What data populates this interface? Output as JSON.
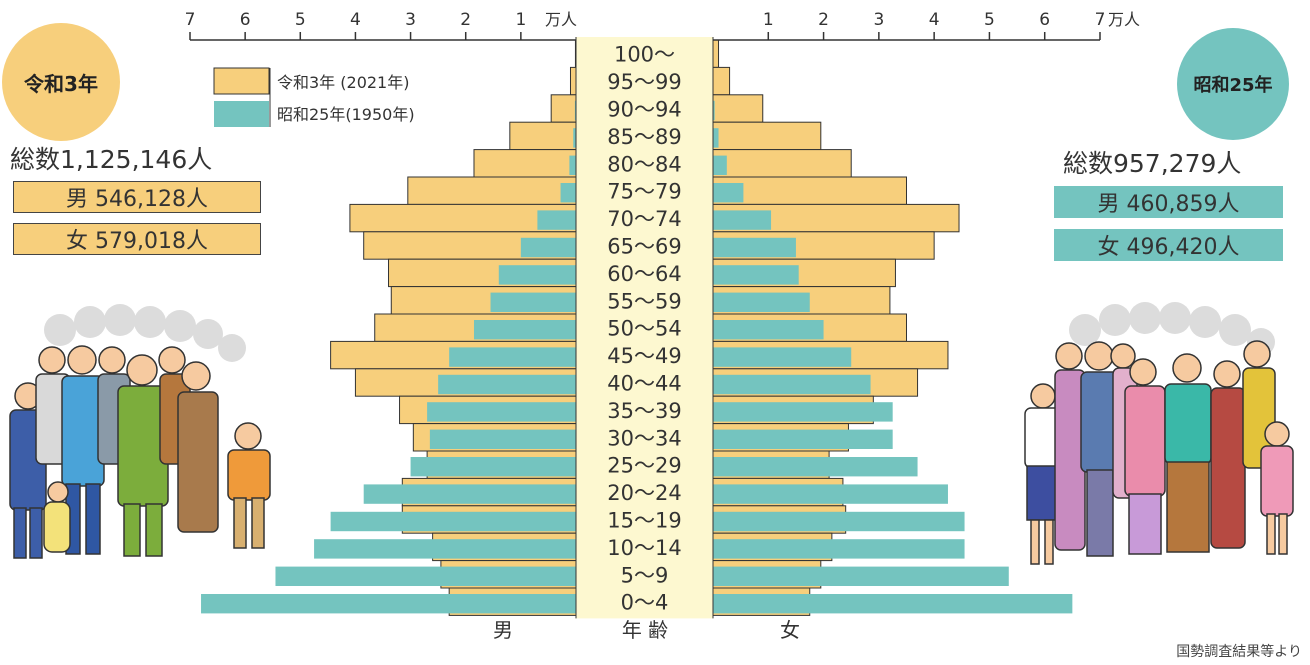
{
  "left_panel": {
    "era_label": "令和3年",
    "total": "総数1,125,146人",
    "male": "男 546,128人",
    "female": "女 579,018人"
  },
  "right_panel": {
    "era_label": "昭和25年",
    "total": "総数957,279人",
    "male": "男 460,859人",
    "female": "女 496,420人"
  },
  "source": "国勢調査結果等より",
  "colors": {
    "reiwa": "#f7cf7c",
    "showa": "#74c4bf",
    "band": "#fdf8d0",
    "axis": "#333333"
  },
  "chart_data": {
    "type": "bar",
    "orientation": "horizontal-population-pyramid",
    "unit": "万人",
    "xlim": [
      0,
      7
    ],
    "x_ticks_left": [
      "7",
      "6",
      "5",
      "4",
      "3",
      "2",
      "1",
      "万人"
    ],
    "x_ticks_right": [
      "1",
      "2",
      "3",
      "4",
      "5",
      "6",
      "7",
      "万人"
    ],
    "categories": [
      "100〜",
      "95〜99",
      "90〜94",
      "85〜89",
      "80〜84",
      "75〜79",
      "70〜74",
      "65〜69",
      "60〜64",
      "55〜59",
      "50〜54",
      "45〜49",
      "40〜44",
      "35〜39",
      "30〜34",
      "25〜29",
      "20〜24",
      "15〜19",
      "10〜14",
      "5〜9",
      "0〜4"
    ],
    "category_axis_label": "年 齢",
    "male_label": "男",
    "female_label": "女",
    "series": [
      {
        "name": "令和3年 (2021年)",
        "male": [
          0.01,
          0.1,
          0.45,
          1.2,
          1.85,
          3.05,
          4.1,
          3.85,
          3.4,
          3.35,
          3.65,
          4.45,
          4.0,
          3.2,
          2.95,
          2.7,
          3.15,
          3.15,
          2.6,
          2.45,
          2.3
        ],
        "female": [
          0.1,
          0.3,
          0.9,
          1.95,
          2.5,
          3.5,
          4.45,
          4.0,
          3.3,
          3.2,
          3.5,
          4.25,
          3.7,
          2.9,
          2.45,
          2.1,
          2.35,
          2.4,
          2.15,
          1.95,
          1.75
        ]
      },
      {
        "name": "昭和25年(1950年)",
        "male": [
          0.0,
          0.0,
          0.02,
          0.05,
          0.12,
          0.28,
          0.7,
          1.0,
          1.4,
          1.55,
          1.85,
          2.3,
          2.5,
          2.7,
          2.65,
          3.0,
          3.85,
          4.45,
          4.75,
          5.45,
          6.8
        ],
        "female": [
          0.0,
          0.0,
          0.03,
          0.1,
          0.25,
          0.55,
          1.05,
          1.5,
          1.55,
          1.75,
          2.0,
          2.5,
          2.85,
          3.25,
          3.25,
          3.7,
          4.25,
          4.55,
          4.55,
          5.35,
          6.5
        ]
      }
    ]
  }
}
